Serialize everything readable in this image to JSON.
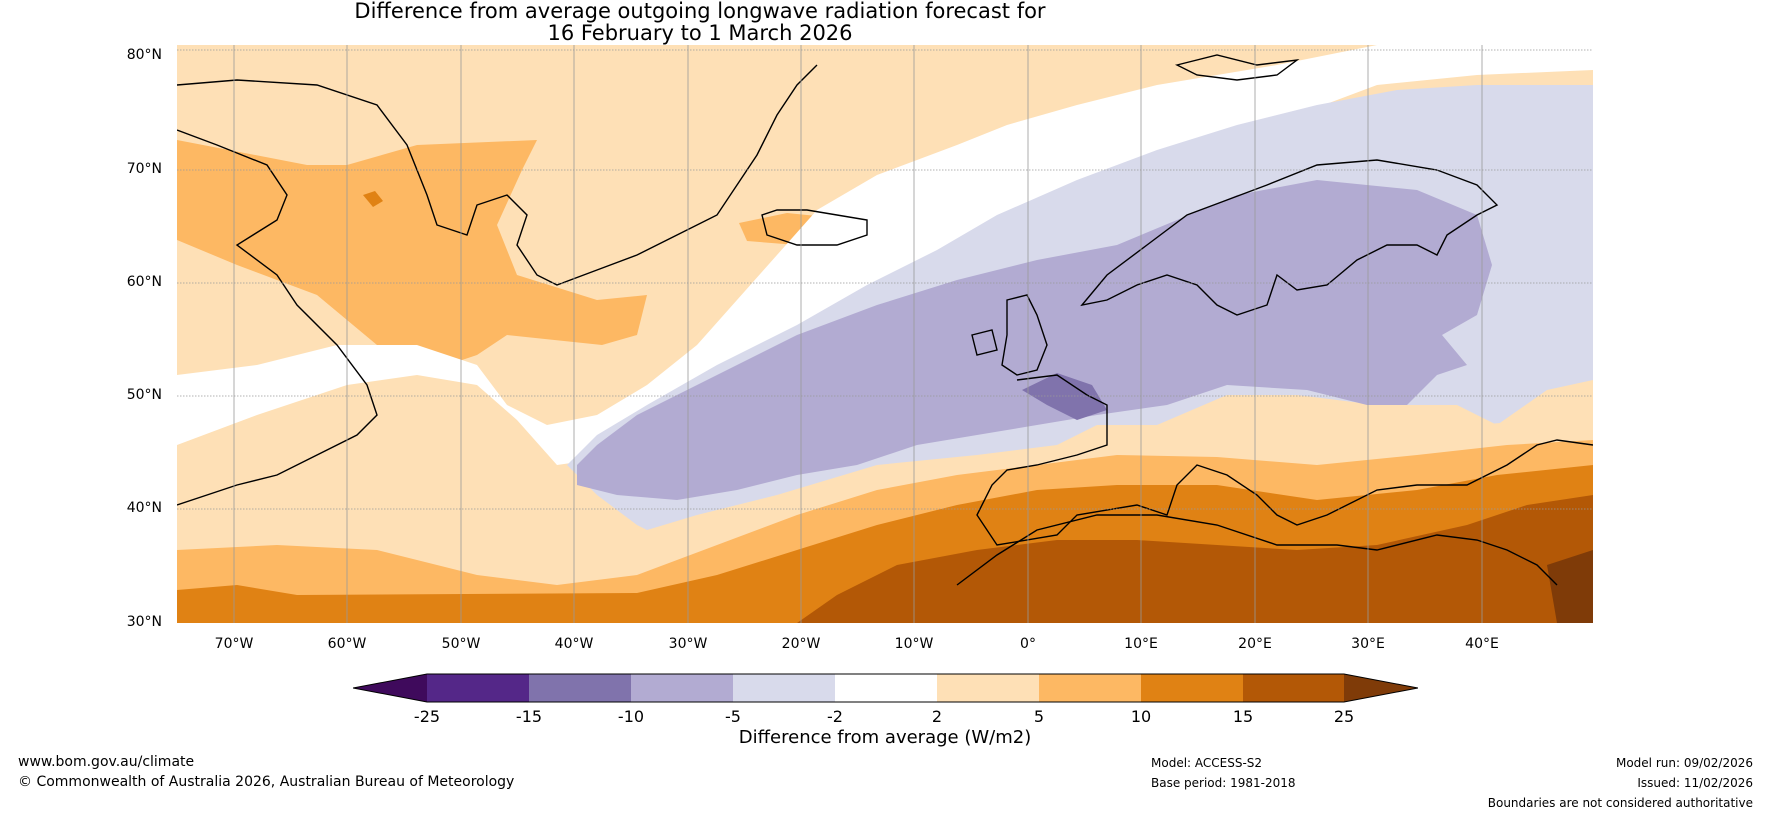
{
  "title": {
    "line1": "Difference from average outgoing longwave radiation forecast for",
    "line2": "16 February to 1 March 2026"
  },
  "axes": {
    "lat_labels": [
      "80°N",
      "70°N",
      "60°N",
      "50°N",
      "40°N",
      "30°N"
    ],
    "lon_labels": [
      "70°W",
      "60°W",
      "50°W",
      "40°W",
      "30°W",
      "20°W",
      "10°W",
      "0°",
      "10°E",
      "20°E",
      "30°E",
      "40°E"
    ]
  },
  "colorbar": {
    "ticks": [
      "-25",
      "-15",
      "-10",
      "-5",
      "-2",
      "2",
      "5",
      "10",
      "15",
      "25"
    ],
    "colors": [
      "#3f0a5c",
      "#542788",
      "#8073ac",
      "#b2abd2",
      "#d8daeb",
      "#ffffff",
      "#fee0b6",
      "#fdb863",
      "#e08214",
      "#b35806",
      "#7f3b08"
    ],
    "label": "Difference from average (W/m2)"
  },
  "footer": {
    "website": "www.bom.gov.au/climate",
    "copyright": "© Commonwealth of Australia 2026, Australian Bureau of Meteorology",
    "model": "Model: ACCESS-S2",
    "base_period": "Base period: 1981-2018",
    "model_run": "Model run: 09/02/2026",
    "issued": "Issued: 11/02/2026",
    "disclaimer": "Boundaries are not considered authoritative"
  }
}
